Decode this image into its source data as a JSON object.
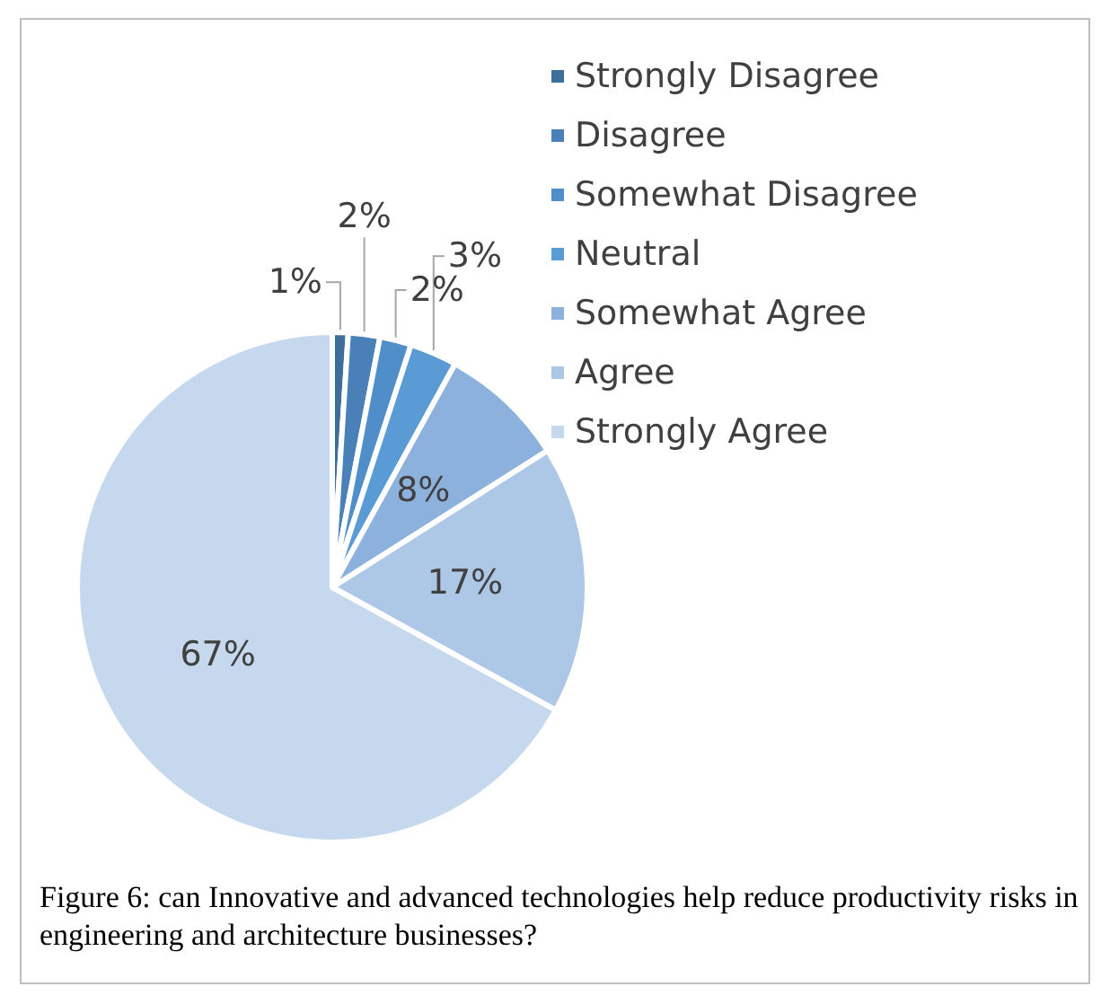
{
  "chart_data": {
    "type": "pie",
    "categories": [
      "Strongly Disagree",
      "Disagree",
      "Somewhat Disagree",
      "Neutral",
      "Somewhat Agree",
      "Agree",
      "Strongly Agree"
    ],
    "values": [
      1,
      2,
      2,
      3,
      8,
      17,
      67
    ],
    "colors": [
      "#3e6e9a",
      "#4a80b8",
      "#4f8ec8",
      "#5b9bd5",
      "#8db1dd",
      "#adc7e6",
      "#c6d8ed"
    ],
    "value_labels": [
      "1%",
      "2%",
      "2%",
      "3%",
      "8%",
      "17%",
      "67%"
    ],
    "legend": "top right",
    "annotations": [
      "Figure 6: can Innovative and advanced technologies help reduce productivity risks in engineering and architecture businesses?"
    ]
  }
}
